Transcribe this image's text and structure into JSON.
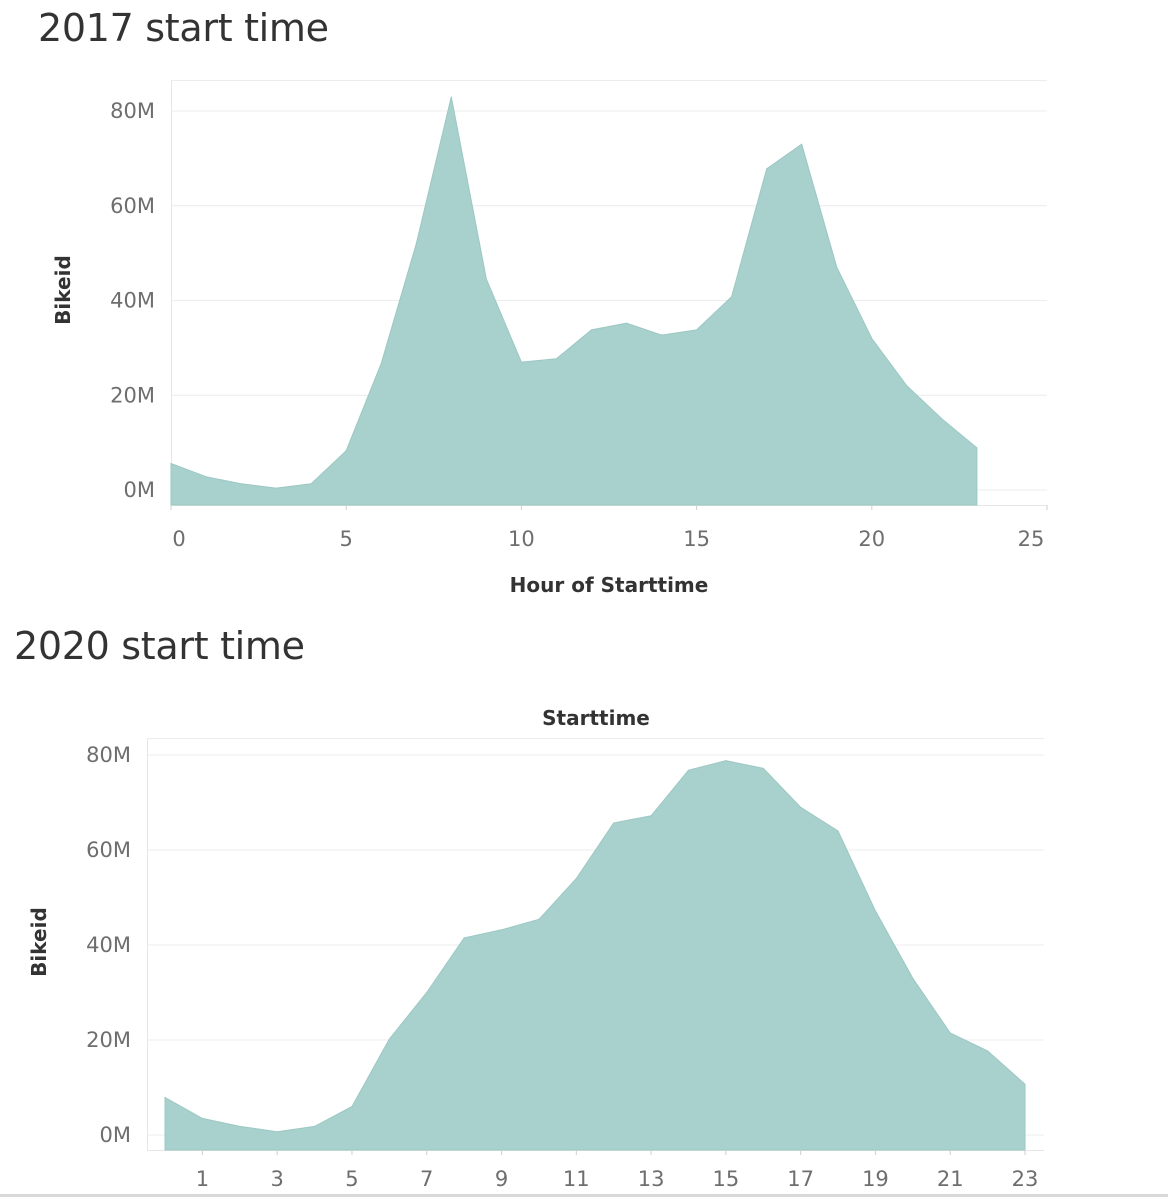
{
  "chart_data": [
    {
      "type": "area",
      "title": "2017 start time",
      "xlabel": "Hour of Starttime",
      "ylabel": "Bikeid",
      "color": "#a8d0cc",
      "xlim": [
        0,
        25
      ],
      "ylim": [
        0,
        80000000
      ],
      "grid": true,
      "x_ticks": [
        "0",
        "5",
        "10",
        "15",
        "20",
        "25"
      ],
      "y_ticks": [
        "0M",
        "20M",
        "40M",
        "60M",
        "80M"
      ],
      "x": [
        0,
        1,
        2,
        3,
        4,
        5,
        6,
        7,
        8,
        9,
        10,
        11,
        12,
        13,
        14,
        15,
        16,
        17,
        18,
        19,
        20,
        21,
        22,
        23
      ],
      "values": [
        5600000,
        2800000,
        1300000,
        400000,
        1300000,
        8300000,
        26700000,
        52000000,
        83000000,
        44500000,
        27000000,
        27700000,
        33800000,
        35200000,
        32700000,
        33800000,
        40800000,
        67800000,
        73000000,
        47000000,
        32000000,
        22000000,
        15000000,
        8900000
      ]
    },
    {
      "type": "area",
      "title": "2020 start time",
      "xlabel": "Starttime",
      "ylabel": "Bikeid",
      "color": "#a8d0cc",
      "xlim": [
        -0.5,
        23.5
      ],
      "ylim": [
        0,
        80000000
      ],
      "grid": true,
      "x_ticks": [
        "1",
        "3",
        "5",
        "7",
        "9",
        "11",
        "13",
        "15",
        "17",
        "19",
        "21",
        "23"
      ],
      "y_ticks": [
        "0M",
        "20M",
        "40M",
        "60M",
        "80M"
      ],
      "x": [
        0,
        1,
        2,
        3,
        4,
        5,
        6,
        7,
        8,
        9,
        10,
        11,
        12,
        13,
        14,
        15,
        16,
        17,
        18,
        19,
        20,
        21,
        22,
        23
      ],
      "values": [
        7900000,
        3500000,
        1800000,
        700000,
        1800000,
        6000000,
        20200000,
        30000000,
        41500000,
        43200000,
        45400000,
        54000000,
        65700000,
        67200000,
        76800000,
        78800000,
        77200000,
        69000000,
        64000000,
        47200000,
        33000000,
        21500000,
        17700000,
        10700000
      ]
    }
  ]
}
